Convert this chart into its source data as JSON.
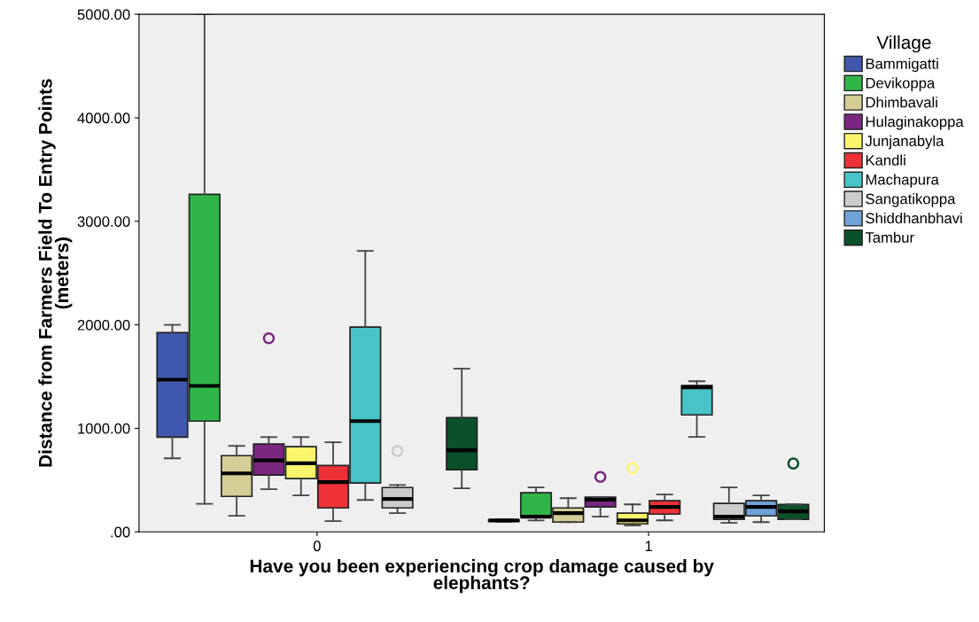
{
  "chart_data": {
    "type": "box",
    "xlabel": "Have you been experiencing crop damage caused by\nelephants?",
    "ylabel": "Distance from Farmers Field To Entry Points\n(meters)",
    "legend_title": "Village",
    "legend": "right",
    "categories": [
      "0",
      "1"
    ],
    "ylim": [
      0,
      5000
    ],
    "yticks": [
      {
        "value": 0,
        "label": ".00"
      },
      {
        "value": 1000,
        "label": "1000.00"
      },
      {
        "value": 2000,
        "label": "2000.00"
      },
      {
        "value": 3000,
        "label": "3000.00"
      },
      {
        "value": 4000,
        "label": "4000.00"
      },
      {
        "value": 5000,
        "label": "5000.00"
      }
    ],
    "grid": false,
    "series": [
      {
        "name": "Bammigatti",
        "color": "#3f58ad",
        "boxes": [
          {
            "low": 710,
            "q1": 915,
            "median": 1470,
            "q3": 1925,
            "high": 2000
          },
          {
            "low": 95,
            "q1": 100,
            "median": 110,
            "q3": 115,
            "high": 120
          }
        ]
      },
      {
        "name": "Devikoppa",
        "color": "#30b548",
        "boxes": [
          {
            "low": 270,
            "q1": 1070,
            "median": 1410,
            "q3": 3260,
            "high": 5000
          },
          {
            "low": 110,
            "q1": 140,
            "median": 146,
            "q3": 377,
            "high": 428
          }
        ]
      },
      {
        "name": "Dhimbavali",
        "color": "#d4cd95",
        "boxes": [
          {
            "low": 154,
            "q1": 342,
            "median": 565,
            "q3": 736,
            "high": 830
          },
          {
            "low": 94,
            "q1": 94,
            "median": 180,
            "q3": 231,
            "high": 325
          }
        ]
      },
      {
        "name": "Hulaginakoppa",
        "color": "#7b2681",
        "boxes": [
          {
            "low": 411,
            "q1": 548,
            "median": 690,
            "q3": 848,
            "high": 915,
            "outliers": [
              1870
            ]
          },
          {
            "low": 146,
            "q1": 240,
            "median": 310,
            "q3": 334,
            "high": 334,
            "outliers": [
              530
            ]
          }
        ]
      },
      {
        "name": "Junjanabyla",
        "color": "#f8f56c",
        "boxes": [
          {
            "low": 351,
            "q1": 514,
            "median": 662,
            "q3": 822,
            "high": 915
          },
          {
            "low": 60,
            "q1": 77,
            "median": 111,
            "q3": 180,
            "high": 265,
            "outliers": [
              615
            ]
          }
        ]
      },
      {
        "name": "Kandli",
        "color": "#ee3137",
        "boxes": [
          {
            "low": 103,
            "q1": 231,
            "median": 480,
            "q3": 640,
            "high": 865
          },
          {
            "low": 111,
            "q1": 171,
            "median": 240,
            "q3": 300,
            "high": 360
          }
        ]
      },
      {
        "name": "Machapura",
        "color": "#48c3c6",
        "boxes": [
          {
            "low": 308,
            "q1": 471,
            "median": 1070,
            "q3": 1978,
            "high": 2714
          },
          {
            "low": 916,
            "q1": 1130,
            "median": 1396,
            "q3": 1413,
            "high": 1455
          }
        ]
      },
      {
        "name": "Sangatikoppa",
        "color": "#cccccc",
        "boxes": [
          {
            "low": 180,
            "q1": 231,
            "median": 317,
            "q3": 428,
            "high": 453,
            "outliers": [
              780
            ]
          },
          {
            "low": 86,
            "q1": 120,
            "median": 146,
            "q3": 274,
            "high": 428
          }
        ]
      },
      {
        "name": "Shiddhanbhavi",
        "color": "#6fa2d8",
        "boxes": [
          null,
          {
            "low": 94,
            "q1": 154,
            "median": 240,
            "q3": 300,
            "high": 351
          }
        ]
      },
      {
        "name": "Tambur",
        "color": "#0a502a",
        "boxes": [
          {
            "low": 420,
            "q1": 600,
            "median": 788,
            "q3": 1104,
            "high": 1576
          },
          {
            "low": 120,
            "q1": 120,
            "median": 197,
            "q3": 265,
            "high": 265,
            "outliers": [
              660
            ]
          }
        ]
      }
    ]
  }
}
